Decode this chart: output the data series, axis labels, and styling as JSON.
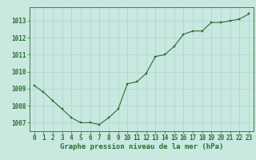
{
  "x": [
    0,
    1,
    2,
    3,
    4,
    5,
    6,
    7,
    8,
    9,
    10,
    11,
    12,
    13,
    14,
    15,
    16,
    17,
    18,
    19,
    20,
    21,
    22,
    23
  ],
  "y": [
    1009.2,
    1008.8,
    1008.3,
    1007.8,
    1007.3,
    1007.0,
    1007.0,
    1006.9,
    1007.3,
    1007.8,
    1009.3,
    1009.4,
    1009.9,
    1010.9,
    1011.0,
    1011.5,
    1012.2,
    1012.4,
    1012.4,
    1012.9,
    1012.9,
    1013.0,
    1013.1,
    1013.4
  ],
  "ylim": [
    1006.5,
    1013.8
  ],
  "yticks": [
    1007,
    1008,
    1009,
    1010,
    1011,
    1012,
    1013
  ],
  "xticks": [
    0,
    1,
    2,
    3,
    4,
    5,
    6,
    7,
    8,
    9,
    10,
    11,
    12,
    13,
    14,
    15,
    16,
    17,
    18,
    19,
    20,
    21,
    22,
    23
  ],
  "xlabel": "Graphe pression niveau de la mer (hPa)",
  "line_color": "#2d6e2d",
  "marker_color": "#2d6e2d",
  "bg_color": "#c8e8e0",
  "grid_color": "#b0d8d0",
  "tick_label_color": "#2d6e2d",
  "xlabel_color": "#2d6e2d",
  "xlabel_fontsize": 6.5,
  "tick_fontsize": 5.5
}
